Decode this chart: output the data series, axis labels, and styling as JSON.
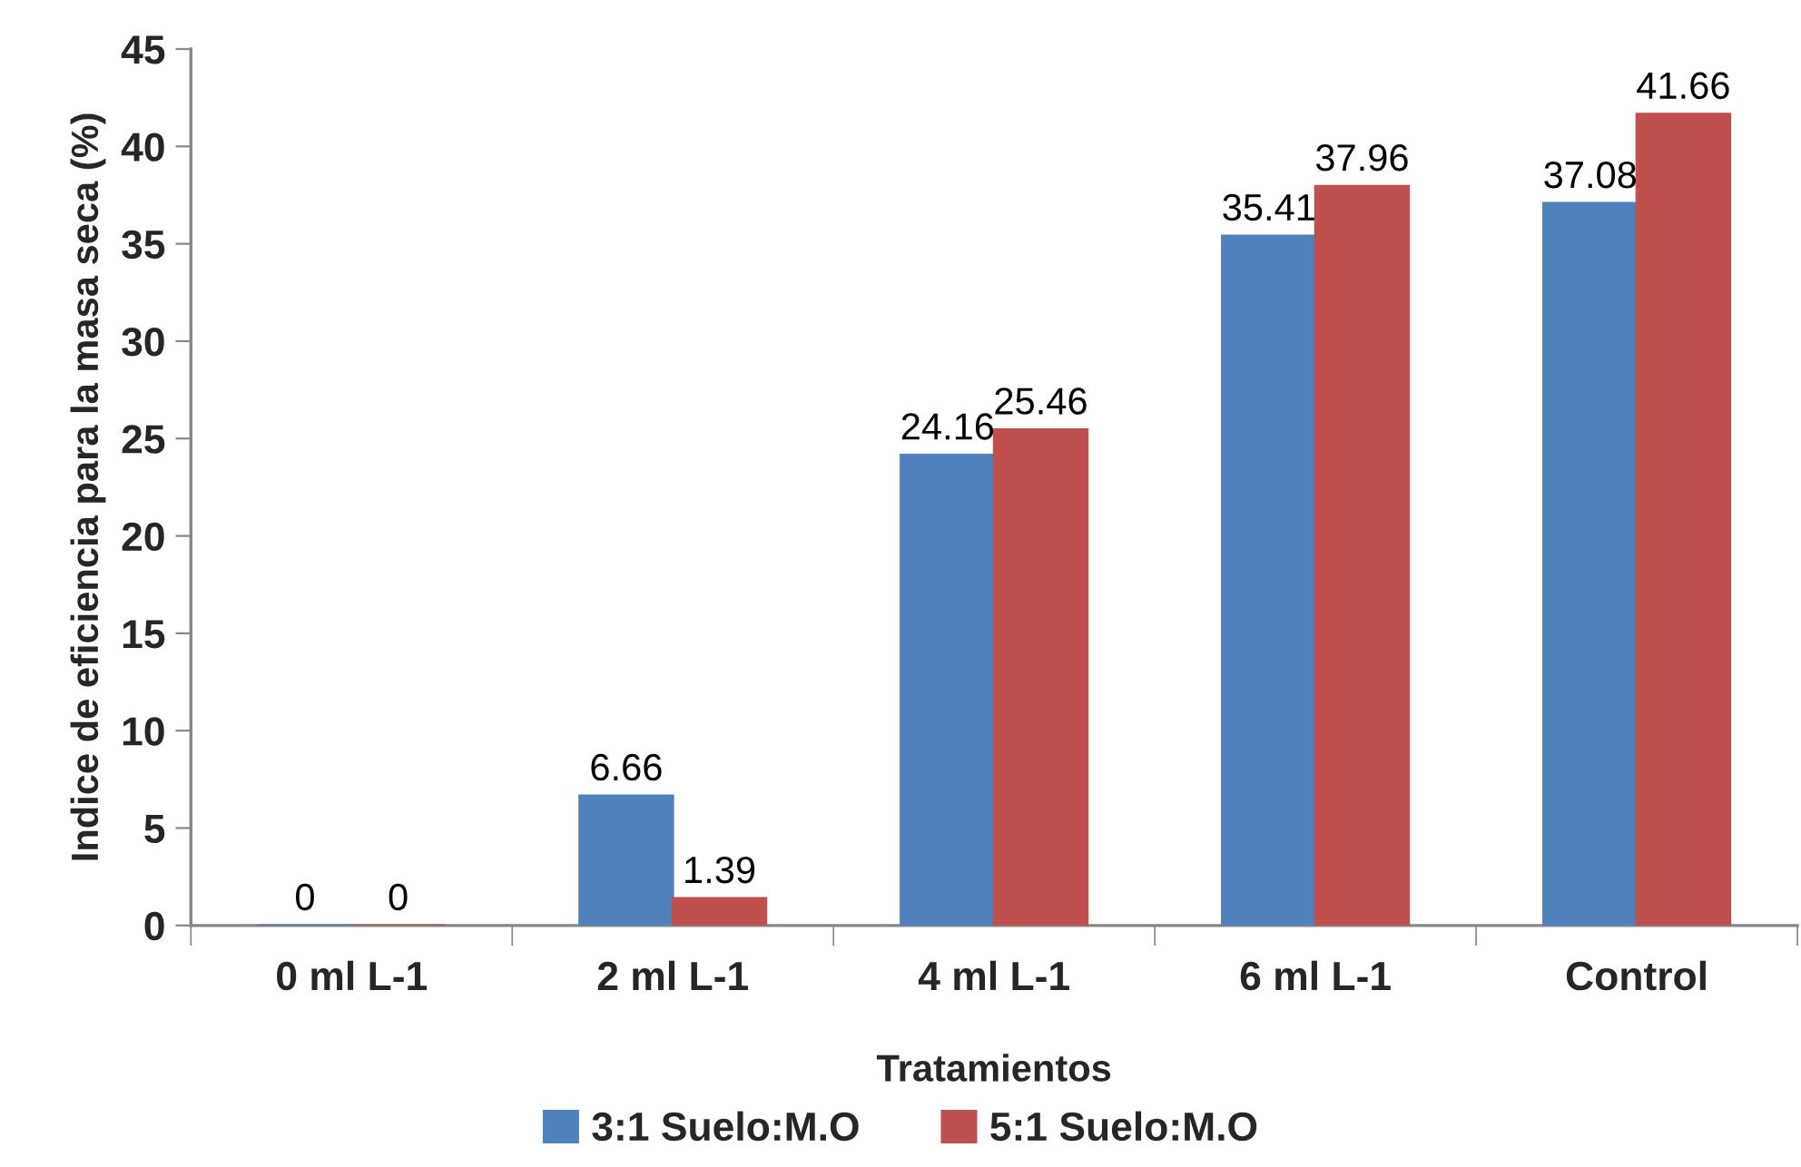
{
  "chart_data": {
    "type": "bar",
    "xlabel": "Tratamientos",
    "ylabel": "Indice de eficiencia para la masa seca (%)",
    "categories": [
      "0 ml L-1",
      "2 ml L-1",
      "4 ml L-1",
      "6 ml L-1",
      "Control"
    ],
    "series": [
      {
        "name": "3:1 Suelo:M.O",
        "color": "#4f81bd",
        "values": [
          0,
          6.66,
          24.16,
          35.41,
          37.08
        ]
      },
      {
        "name": "5:1 Suelo:M.O",
        "color": "#c0504d",
        "values": [
          0,
          1.39,
          25.46,
          37.96,
          41.66
        ]
      }
    ],
    "ylim": [
      0,
      45
    ],
    "yticks": [
      0,
      5,
      10,
      15,
      20,
      25,
      30,
      35,
      40,
      45
    ],
    "data_labels": true,
    "legend": "bottom"
  }
}
